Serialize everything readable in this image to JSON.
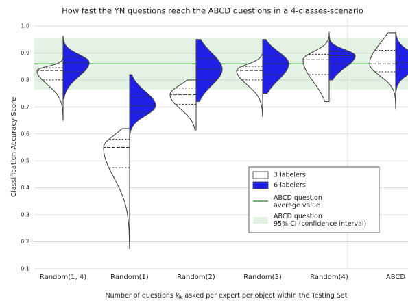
{
  "chart_data": {
    "type": "split-violin",
    "title": "How fast the YN questions reach the ABCD questions in a 4-classes-scenario",
    "ylabel": "Classification Accuracy Score",
    "xlabel": {
      "before": "Number of questions ",
      "symbol": "k",
      "sup": "l",
      "sub": "ik",
      "after": " asked per expert per object within the Testing Set"
    },
    "categories": [
      "Random(1, 4)",
      "Random(1)",
      "Random(2)",
      "Random(3)",
      "Random(4)",
      "ABCD"
    ],
    "ylim": [
      0.1,
      1.0
    ],
    "yticks": [
      0.1,
      0.2,
      0.3,
      0.4,
      0.5,
      0.6,
      0.7,
      0.8,
      0.9,
      {
        "value": 1.0,
        "label": "1.0"
      }
    ],
    "grid": true,
    "series": [
      {
        "name": "3 labelers",
        "color": "#ffffff",
        "side": "left",
        "values": [
          {
            "min": 0.65,
            "q1": 0.8,
            "median": 0.835,
            "q3": 0.845,
            "max": 0.905
          },
          {
            "min": 0.175,
            "q1": 0.475,
            "median": 0.55,
            "q3": 0.58,
            "max": 0.62
          },
          {
            "min": 0.615,
            "q1": 0.71,
            "median": 0.745,
            "q3": 0.77,
            "max": 0.8
          },
          {
            "min": 0.665,
            "q1": 0.8,
            "median": 0.835,
            "q3": 0.85,
            "max": 0.895
          },
          {
            "min": 0.72,
            "q1": 0.82,
            "median": 0.875,
            "q3": 0.895,
            "max": 0.96
          },
          {
            "min": 0.69,
            "q1": 0.83,
            "median": 0.86,
            "q3": 0.91,
            "max": 0.975
          }
        ]
      },
      {
        "name": "6 labelers",
        "color": "#1f1fe6",
        "side": "right",
        "values": [
          {
            "min": 0.73,
            "q1": 0.83,
            "median": 0.865,
            "q3": 0.885,
            "max": 0.962
          },
          {
            "min": 0.55,
            "q1": 0.68,
            "median": 0.705,
            "q3": 0.74,
            "max": 0.82
          },
          {
            "min": 0.72,
            "q1": 0.8,
            "median": 0.84,
            "q3": 0.88,
            "max": 0.95
          },
          {
            "min": 0.75,
            "q1": 0.82,
            "median": 0.86,
            "q3": 0.89,
            "max": 0.95
          },
          {
            "min": 0.8,
            "q1": 0.86,
            "median": 0.89,
            "q3": 0.905,
            "max": 0.978
          },
          {
            "min": 0.72,
            "q1": 0.84,
            "median": 0.865,
            "q3": 0.89,
            "max": 0.975
          }
        ]
      }
    ],
    "reference_line": {
      "name": "ABCD question\naverage value",
      "value": 0.86,
      "color": "#3a9a3a"
    },
    "reference_band": {
      "name": "ABCD question\n95% CI (confidence interval)",
      "low": 0.765,
      "high": 0.955,
      "color": "#e3f2e3"
    },
    "legend": "lower right"
  }
}
